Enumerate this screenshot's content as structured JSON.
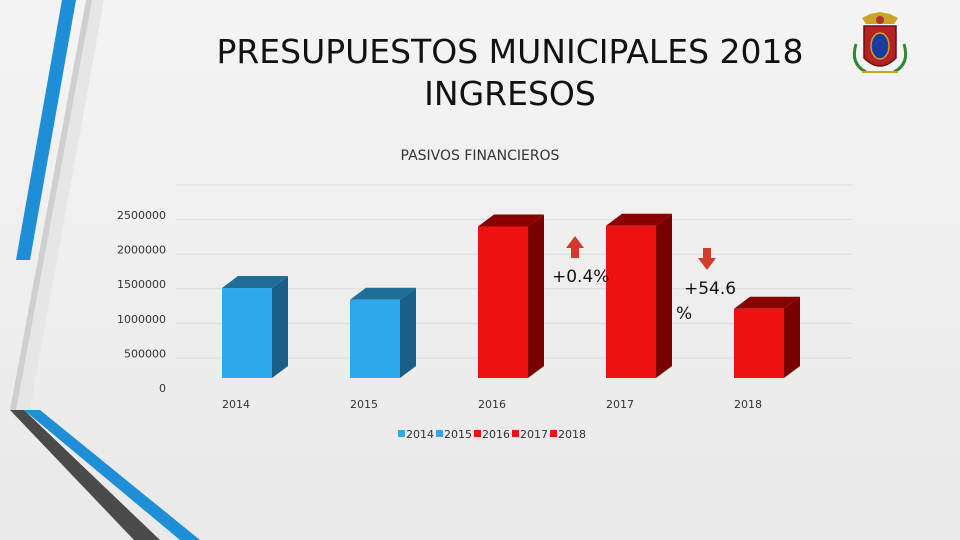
{
  "slide": {
    "title_line1": "PRESUPUESTOS MUNICIPALES 2018",
    "title_line2": "INGRESOS",
    "logo_icon": "municipal-coat-of-arms"
  },
  "colors": {
    "blue_face": "#2ea8ec",
    "blue_side": "#1a5f87",
    "blue_top": "#1f6e98",
    "red_face": "#ee1111",
    "red_side": "#7a0000",
    "red_top": "#8a0000",
    "arrow_red": "#d43a2a",
    "accent_blue": "#1e8fd6",
    "accent_dark": "#4a4a4a"
  },
  "chart_data": {
    "type": "bar",
    "title": "PASIVOS FINANCIEROS",
    "categories": [
      "2014",
      "2015",
      "2016",
      "2017",
      "2018"
    ],
    "values": [
      1300000,
      1130000,
      2190000,
      2200000,
      1000000
    ],
    "ylim": [
      0,
      2500000
    ],
    "yticks": [
      "0",
      "500000",
      "1000000",
      "1500000",
      "2000000",
      "2500000"
    ],
    "grid": true,
    "legend": [
      "2014",
      "2015",
      "2016",
      "2017",
      "2018"
    ],
    "legend_position": "bottom",
    "annotations": [
      {
        "text": "+0.4%",
        "arrow": "up"
      },
      {
        "text_line1": "+54.6",
        "text_line2": "%",
        "arrow": "down"
      }
    ]
  }
}
